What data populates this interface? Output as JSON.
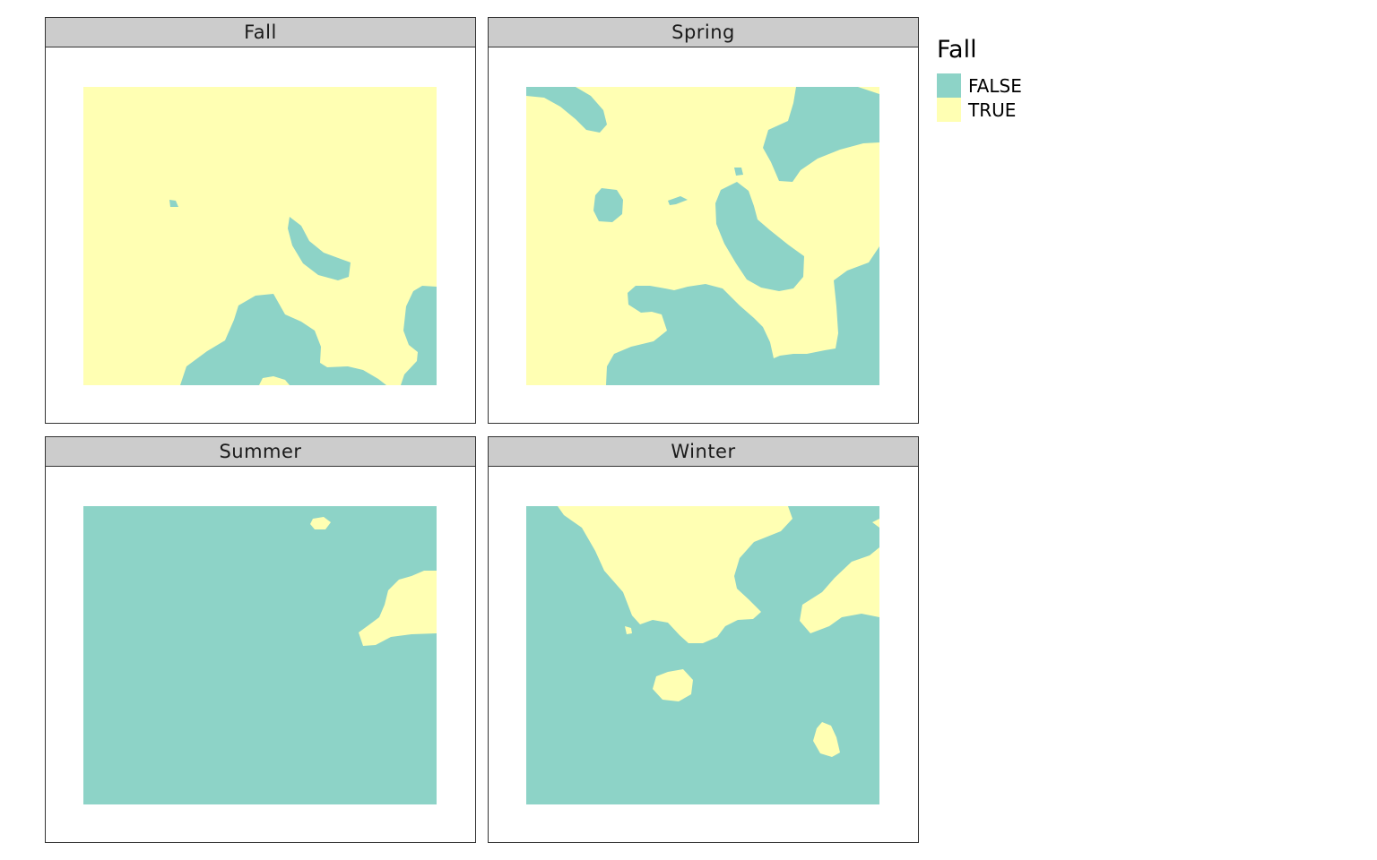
{
  "colors": {
    "false": "#8dd3c7",
    "true": "#ffffb3"
  },
  "legend": {
    "title": "Fall",
    "items": [
      {
        "label": "FALSE",
        "value": false,
        "color": "#8dd3c7"
      },
      {
        "label": "TRUE",
        "value": true,
        "color": "#ffffb3"
      }
    ]
  },
  "facets": [
    {
      "label": "Fall",
      "background": "true"
    },
    {
      "label": "Spring",
      "background": "true"
    },
    {
      "label": "Summer",
      "background": "false"
    },
    {
      "label": "Winter",
      "background": "false"
    }
  ]
}
